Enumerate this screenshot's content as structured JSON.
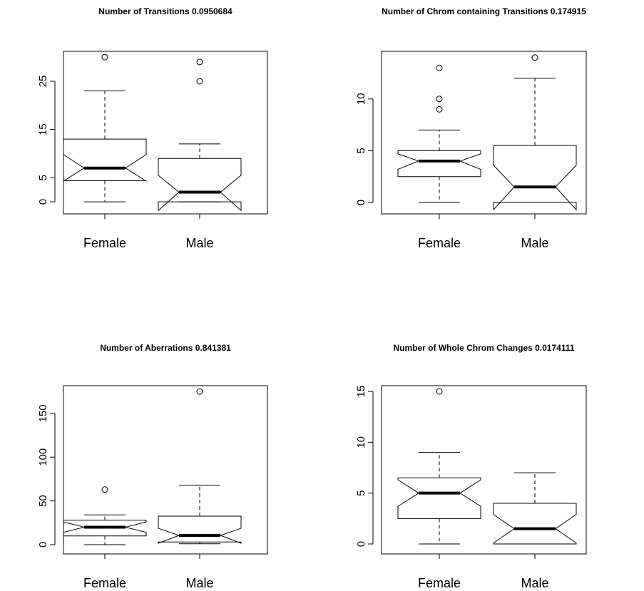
{
  "chart_data": [
    {
      "type": "box",
      "title": "Number of Transitions 0.0950684",
      "categories": [
        "Female",
        "Male"
      ],
      "boxes": [
        {
          "min": 0,
          "q1": 4.4,
          "median": 7,
          "q3": 13,
          "max": 23,
          "notch": [
            4.3,
            9.8
          ],
          "outliers": [
            30
          ]
        },
        {
          "min": 0,
          "q1": 0,
          "median": 2,
          "q3": 9,
          "max": 12,
          "notch": [
            -1.8,
            5.5
          ],
          "outliers": [
            25,
            29
          ]
        }
      ],
      "ylim": [
        -2.5,
        31.2
      ],
      "yticks": [
        0,
        5,
        15,
        25
      ]
    },
    {
      "type": "box",
      "title": "Number of Chrom containing Transitions 0.174915",
      "categories": [
        "Female",
        "Male"
      ],
      "boxes": [
        {
          "min": 0,
          "q1": 2.5,
          "median": 4,
          "q3": 5,
          "max": 7,
          "notch": [
            3.2,
            4.7
          ],
          "outliers": [
            9,
            10,
            13
          ]
        },
        {
          "min": 0,
          "q1": 0,
          "median": 1.5,
          "q3": 5.5,
          "max": 12,
          "notch": [
            -0.7,
            3.6
          ],
          "outliers": [
            14
          ]
        }
      ],
      "ylim": [
        -1.1,
        14.6
      ],
      "yticks": [
        0,
        5,
        10
      ]
    },
    {
      "type": "box",
      "title": "Number of Aberrations 0.841381",
      "categories": [
        "Female",
        "Male"
      ],
      "boxes": [
        {
          "min": 0,
          "q1": 10,
          "median": 20,
          "q3": 28,
          "max": 34,
          "notch": [
            14,
            26
          ],
          "outliers": [
            63
          ]
        },
        {
          "min": 1,
          "q1": 3,
          "median": 10.6,
          "q3": 32.6,
          "max": 68,
          "notch": [
            1.6,
            18.7
          ],
          "outliers": [
            175
          ]
        }
      ],
      "ylim": [
        -10.6,
        181.7
      ],
      "yticks": [
        0,
        50,
        100,
        150
      ]
    },
    {
      "type": "box",
      "title": "Number of Whole Chrom Changes 0.0174111",
      "categories": [
        "Female",
        "Male"
      ],
      "boxes": [
        {
          "min": 0,
          "q1": 2.5,
          "median": 5,
          "q3": 6.5,
          "max": 9,
          "notch": [
            3.7,
            6.3
          ],
          "outliers": [
            15
          ]
        },
        {
          "min": 0,
          "q1": 0,
          "median": 1.5,
          "q3": 4,
          "max": 7,
          "notch": [
            0.1,
            2.9
          ],
          "outliers": []
        }
      ],
      "ylim": [
        -0.98,
        15.56
      ],
      "yticks": [
        0,
        5,
        10,
        15
      ]
    }
  ]
}
